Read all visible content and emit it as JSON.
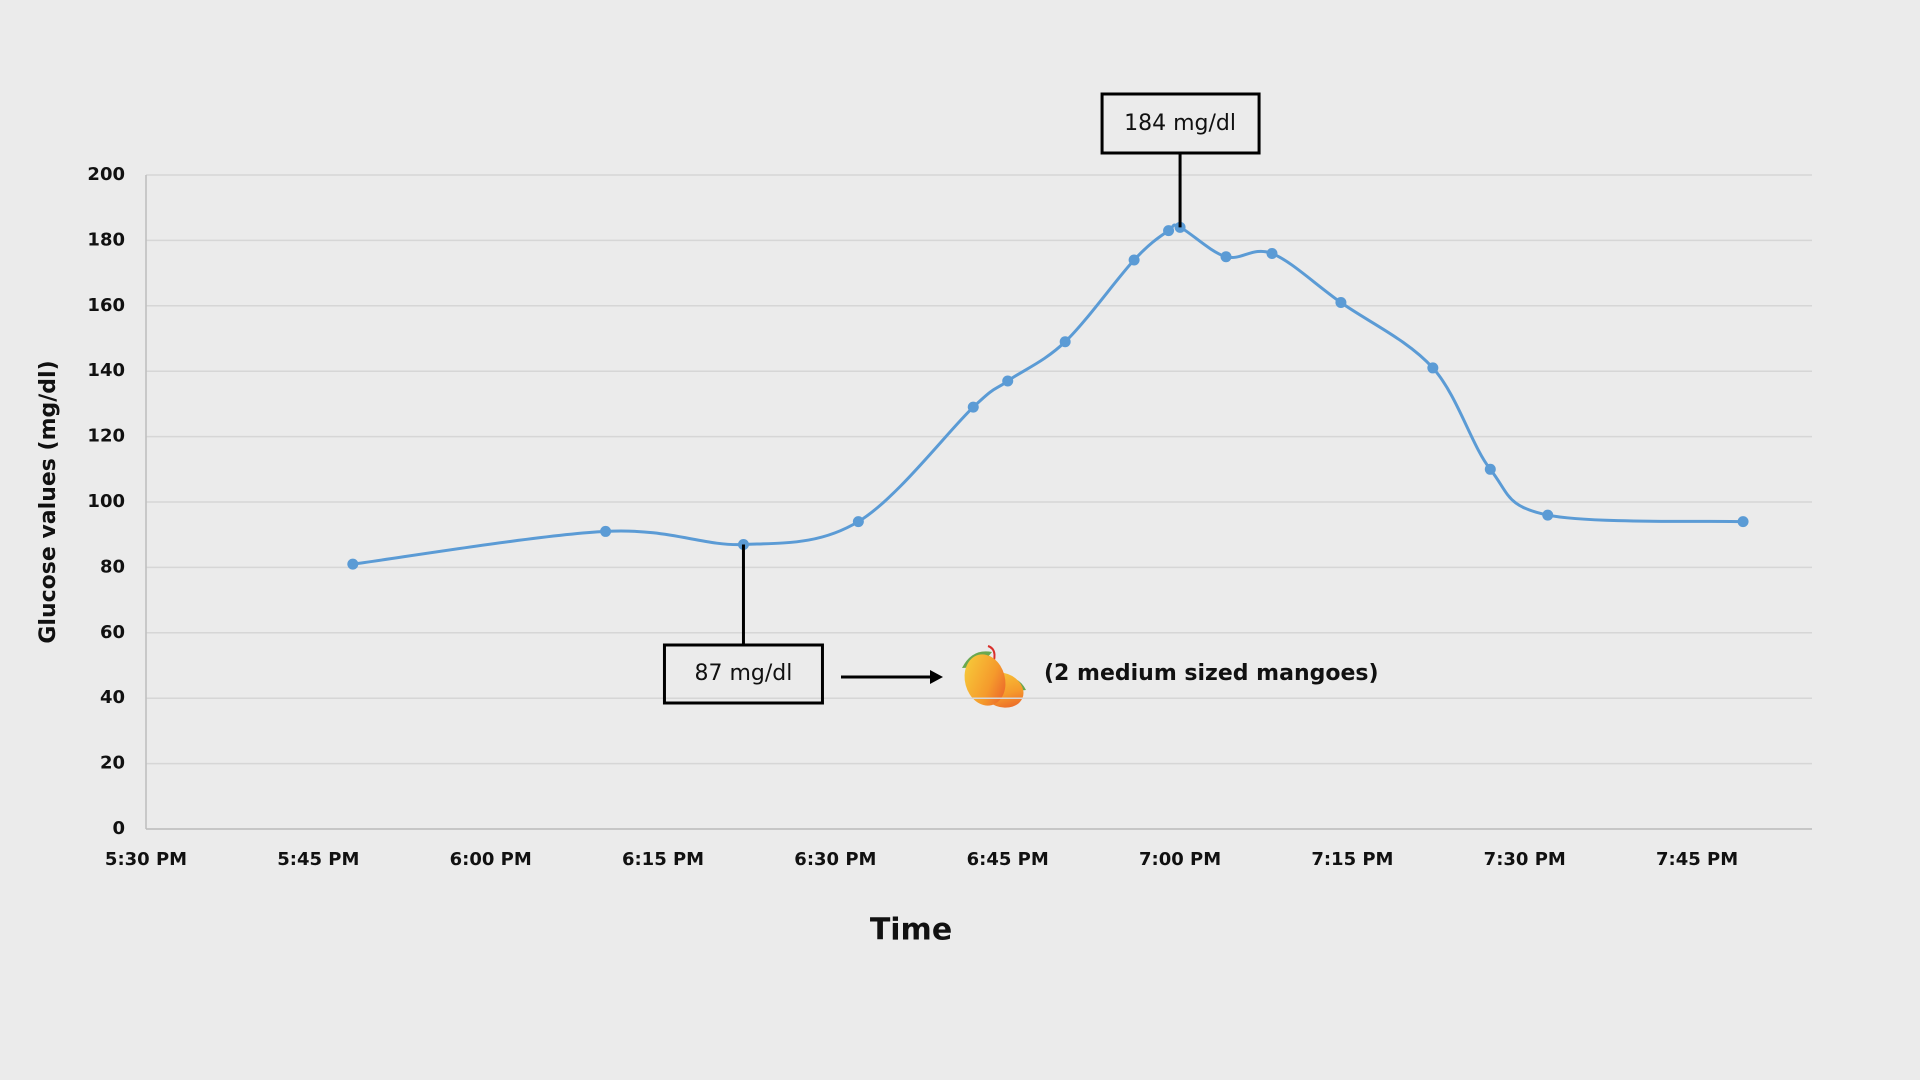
{
  "chart_data": {
    "type": "line",
    "y_label": "Glucose values (mg/dl)",
    "x_label": "Time",
    "x": [
      "5:48 PM",
      "6:10 PM",
      "6:22 PM",
      "6:32 PM",
      "6:42 PM",
      "6:45 PM",
      "6:50 PM",
      "6:56 PM",
      "6:59 PM",
      "7:00 PM",
      "7:04 PM",
      "7:08 PM",
      "7:14 PM",
      "7:22 PM",
      "7:27 PM",
      "7:32 PM",
      "7:49 PM"
    ],
    "values": [
      81,
      91,
      87,
      94,
      129,
      137,
      149,
      174,
      183,
      184,
      175,
      176,
      161,
      141,
      110,
      96,
      94
    ],
    "color": "#5b9bd5",
    "xlim": [
      "5:30 PM",
      "7:55 PM"
    ],
    "xticks": [
      "5:30 PM",
      "5:45 PM",
      "6:00 PM",
      "6:15 PM",
      "6:30 PM",
      "6:45 PM",
      "7:00 PM",
      "7:15 PM",
      "7:30 PM",
      "7:45 PM"
    ],
    "ylim": [
      0,
      200
    ],
    "yticks": [
      0,
      20,
      40,
      60,
      80,
      100,
      120,
      140,
      160,
      180,
      200
    ],
    "grid": true,
    "annotations": [
      "184 mg/dl",
      "87 mg/dl",
      "(2 medium sized mangoes)"
    ]
  }
}
